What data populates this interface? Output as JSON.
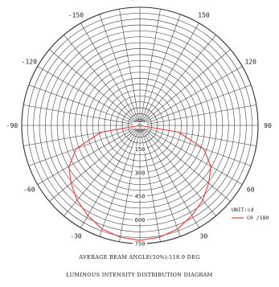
{
  "chart_data": {
    "type": "polar-line",
    "title": "LUMINOUS INTENSITY DISTRIBUTION DIAGRAM",
    "subtitle": "AVERAGE BEAM ANGLE(50%):118.9 DEG",
    "unit_label": "UNIT:cd",
    "radial_ticks": [
      0,
      150,
      300,
      450,
      600,
      750
    ],
    "radial_max": 750,
    "angle_labels": [
      {
        "angle": 180,
        "text": "-/+180"
      },
      {
        "angle": 150,
        "text": "150"
      },
      {
        "angle": 120,
        "text": "120"
      },
      {
        "angle": 90,
        "text": "90"
      },
      {
        "angle": 60,
        "text": "60"
      },
      {
        "angle": 30,
        "text": "30"
      },
      {
        "angle": -30,
        "text": "-30"
      },
      {
        "angle": -60,
        "text": "-60"
      },
      {
        "angle": -90,
        "text": "-90"
      },
      {
        "angle": -120,
        "text": "-120"
      },
      {
        "angle": -150,
        "text": "-150"
      }
    ],
    "series": [
      {
        "name": "C0 /180",
        "color": "#e83a3a",
        "angles": [
          -90,
          -80,
          -70,
          -60,
          -50,
          -40,
          -30,
          -20,
          -10,
          0,
          10,
          20,
          30,
          40,
          50,
          60,
          70,
          80,
          90
        ],
        "values": [
          0,
          250,
          430,
          520,
          570,
          620,
          660,
          700,
          720,
          730,
          720,
          700,
          660,
          620,
          570,
          520,
          430,
          250,
          0
        ]
      }
    ],
    "grid": true
  }
}
